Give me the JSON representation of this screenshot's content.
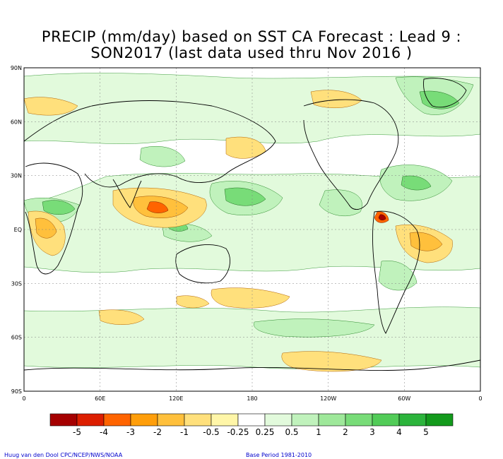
{
  "title": {
    "line1": "PRECIP (mm/day) based on SST CA Forecast : Lead 9 :",
    "line2": "SON2017 (last data used thru Nov 2016 )"
  },
  "axes": {
    "lat_labels": [
      "90N",
      "60N",
      "30N",
      "EQ",
      "30S",
      "60S",
      "90S"
    ],
    "lon_labels": [
      "0",
      "60E",
      "120E",
      "180",
      "120W",
      "60W",
      "0"
    ]
  },
  "colorbar": {
    "labels": [
      "-5",
      "-4",
      "-3",
      "-2",
      "-1",
      "-0.5",
      "-0.25",
      "0.25",
      "0.5",
      "1",
      "2",
      "3",
      "4",
      "5"
    ],
    "colors": [
      "#a50000",
      "#dc1e00",
      "#ff6400",
      "#ff9e0a",
      "#ffc03c",
      "#ffe07c",
      "#fff6a8",
      "#ffffff",
      "#e2fadc",
      "#c0f2bc",
      "#9ee89a",
      "#78dc78",
      "#52cc58",
      "#2cb43c",
      "#139a1c"
    ]
  },
  "credit": {
    "left": "Huug van den Dool  CPC/NCEP/NWS/NOAA",
    "right": "Base Period  1981-2010"
  }
}
